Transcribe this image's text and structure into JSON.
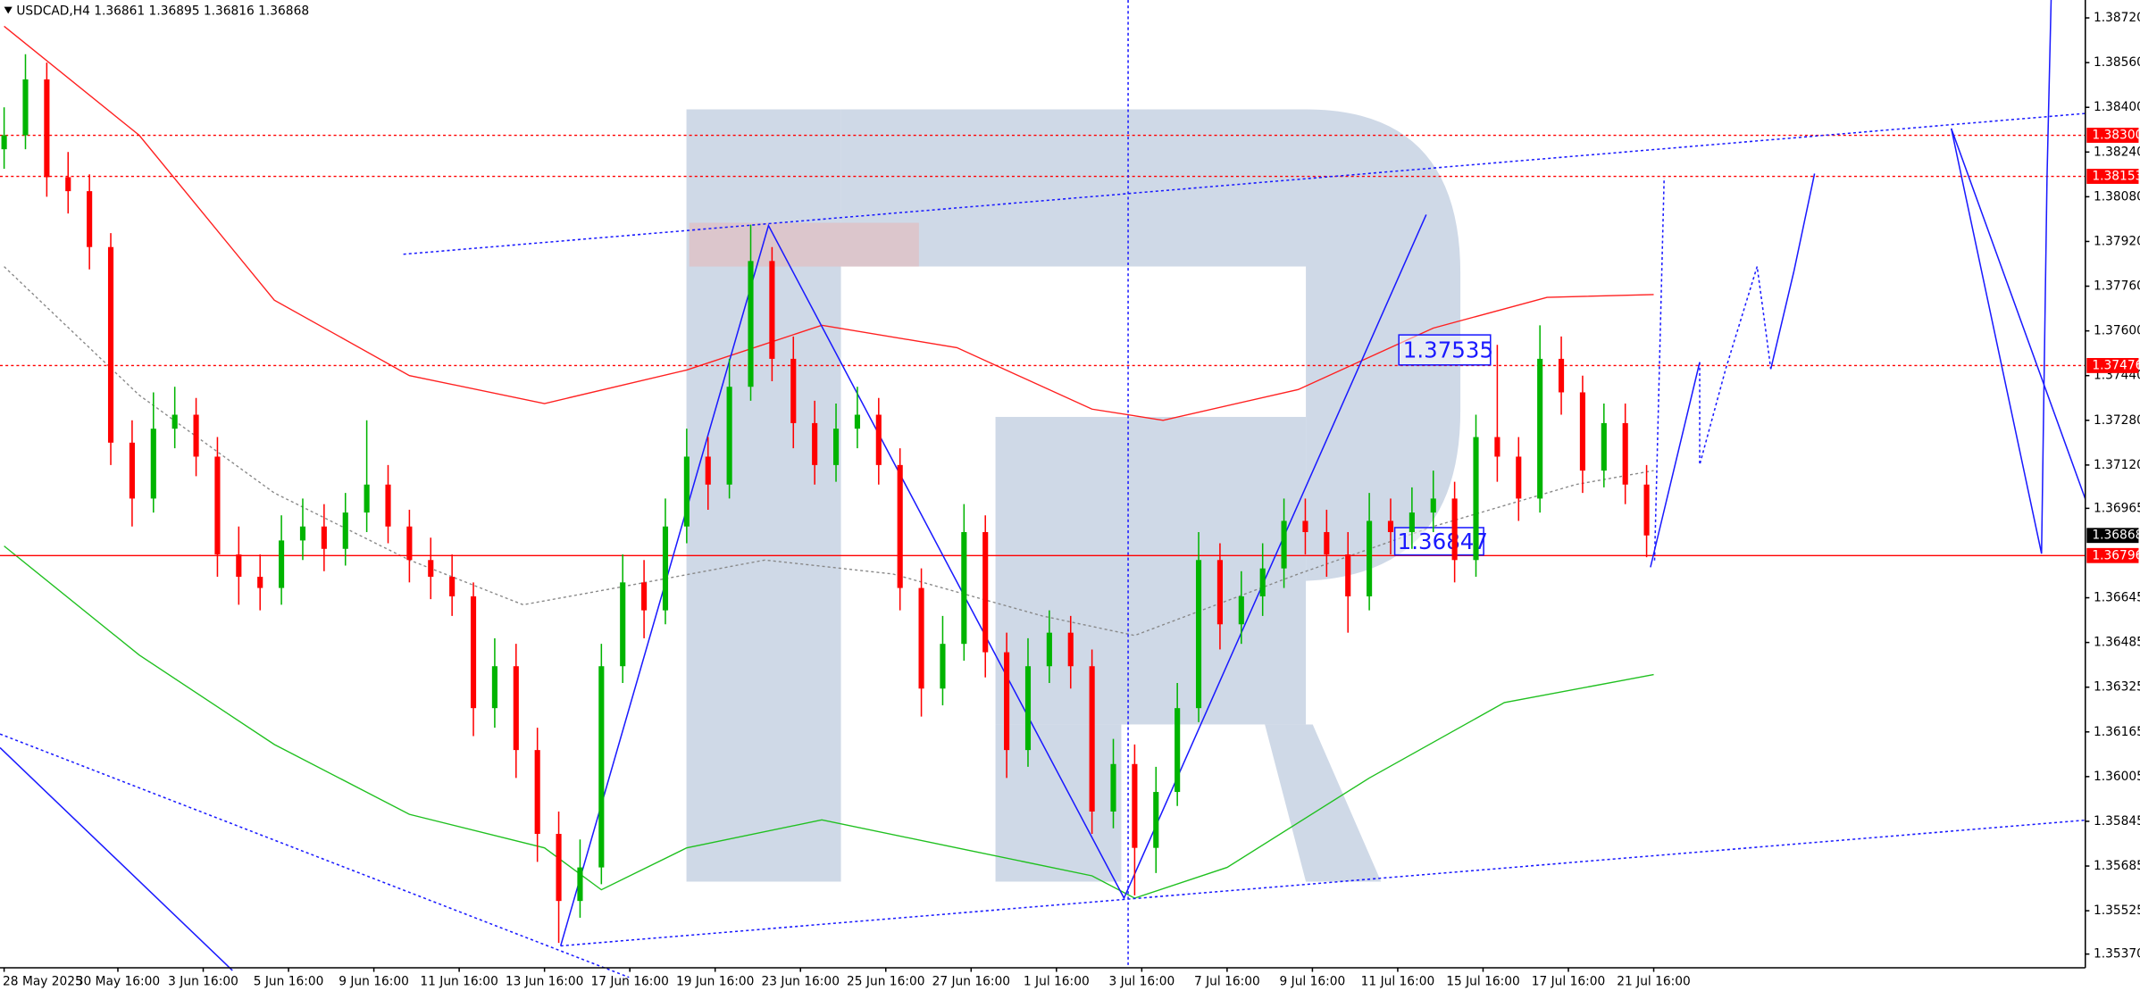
{
  "chart_data": {
    "type": "candlestick",
    "title": "USDCAD,H4  1.36861 1.36895 1.36816 1.36868",
    "xlim": [
      -0.58,
      292.7
    ],
    "ylim": [
      1.35321,
      1.38784
    ],
    "grid": false,
    "up_color": "#00b400",
    "down_color": "#ff0000",
    "xticks": [
      {
        "value": 0,
        "label": "28 May 2025"
      },
      {
        "value": 16,
        "label": "30 May 16:00"
      },
      {
        "value": 28,
        "label": "3 Jun 16:00"
      },
      {
        "value": 40,
        "label": "5 Jun 16:00"
      },
      {
        "value": 52,
        "label": "9 Jun 16:00"
      },
      {
        "value": 64,
        "label": "11 Jun 16:00"
      },
      {
        "value": 76,
        "label": "13 Jun 16:00"
      },
      {
        "value": 88,
        "label": "17 Jun 16:00"
      },
      {
        "value": 100,
        "label": "19 Jun 16:00"
      },
      {
        "value": 112,
        "label": "23 Jun 16:00"
      },
      {
        "value": 124,
        "label": "25 Jun 16:00"
      },
      {
        "value": 136,
        "label": "27 Jun 16:00"
      },
      {
        "value": 148,
        "label": "1 Jul 16:00"
      },
      {
        "value": 160,
        "label": "3 Jul 16:00"
      },
      {
        "value": 172,
        "label": "7 Jul 16:00"
      },
      {
        "value": 184,
        "label": "9 Jul 16:00"
      },
      {
        "value": 196,
        "label": "11 Jul 16:00"
      },
      {
        "value": 208,
        "label": "15 Jul 16:00"
      },
      {
        "value": 220,
        "label": "17 Jul 16:00"
      },
      {
        "value": 232,
        "label": "21 Jul 16:00"
      }
    ],
    "yticks": [
      {
        "value": 1.3872,
        "label": "1.38720"
      },
      {
        "value": 1.3856,
        "label": "1.38560"
      },
      {
        "value": 1.384,
        "label": "1.38400"
      },
      {
        "value": 1.3824,
        "label": "1.38240"
      },
      {
        "value": 1.3808,
        "label": "1.38080"
      },
      {
        "value": 1.3792,
        "label": "1.37920"
      },
      {
        "value": 1.3776,
        "label": "1.37760"
      },
      {
        "value": 1.376,
        "label": "1.37600"
      },
      {
        "value": 1.3744,
        "label": "1.37440"
      },
      {
        "value": 1.3728,
        "label": "1.37280"
      },
      {
        "value": 1.3712,
        "label": "1.37120"
      },
      1.36965,
      1.36645,
      1.36485,
      1.36325,
      1.36165,
      1.36005,
      1.35845,
      1.35685,
      1.35525,
      {
        "value": 1.3537,
        "label": "1.35370"
      }
    ],
    "x": [
      0,
      3,
      6,
      9,
      12,
      15,
      18,
      21,
      24,
      27,
      30,
      33,
      36,
      39,
      42,
      45,
      48,
      51,
      54,
      57,
      60,
      63,
      66,
      69,
      72,
      75,
      78,
      81,
      84,
      87,
      90,
      93,
      96,
      99,
      102,
      105,
      108,
      111,
      114,
      117,
      120,
      123,
      126,
      129,
      132,
      135,
      138,
      141,
      144,
      147,
      150,
      153,
      156,
      159,
      162,
      165,
      168,
      171,
      174,
      177,
      180,
      183,
      186,
      189,
      192,
      195,
      198,
      201,
      204,
      207,
      210,
      213,
      216,
      219,
      222,
      225,
      228,
      231
    ],
    "open": [
      1.3825,
      1.383,
      1.385,
      1.3815,
      1.381,
      1.379,
      1.372,
      1.37,
      1.3725,
      1.373,
      1.3715,
      1.368,
      1.3672,
      1.3668,
      1.3685,
      1.369,
      1.3682,
      1.3695,
      1.3705,
      1.369,
      1.3678,
      1.3672,
      1.3665,
      1.3625,
      1.364,
      1.361,
      1.358,
      1.3556,
      1.3568,
      1.364,
      1.367,
      1.366,
      1.369,
      1.3715,
      1.3705,
      1.374,
      1.3785,
      1.375,
      1.3727,
      1.3712,
      1.3725,
      1.373,
      1.3712,
      1.3668,
      1.3632,
      1.3648,
      1.3688,
      1.3645,
      1.361,
      1.364,
      1.3652,
      1.364,
      1.3588,
      1.3605,
      1.3575,
      1.3595,
      1.3625,
      1.3678,
      1.3655,
      1.3665,
      1.3675,
      1.3692,
      1.3688,
      1.368,
      1.3665,
      1.3692,
      1.3688,
      1.3695,
      1.37,
      1.3678,
      1.3722,
      1.3715,
      1.37,
      1.375,
      1.3738,
      1.371,
      1.3727,
      1.3705
    ],
    "high": [
      1.384,
      1.3859,
      1.3856,
      1.3824,
      1.3816,
      1.3795,
      1.3728,
      1.3738,
      1.374,
      1.3736,
      1.3722,
      1.369,
      1.368,
      1.3694,
      1.37,
      1.3698,
      1.3702,
      1.3728,
      1.3712,
      1.3696,
      1.3686,
      1.368,
      1.367,
      1.365,
      1.3648,
      1.3618,
      1.3588,
      1.3578,
      1.3648,
      1.368,
      1.3678,
      1.37,
      1.3725,
      1.3722,
      1.375,
      1.3798,
      1.379,
      1.3758,
      1.3735,
      1.3734,
      1.374,
      1.3736,
      1.3718,
      1.3675,
      1.3658,
      1.3698,
      1.3694,
      1.3652,
      1.365,
      1.366,
      1.3658,
      1.3646,
      1.3614,
      1.3612,
      1.3604,
      1.3634,
      1.3688,
      1.3684,
      1.3674,
      1.3684,
      1.37,
      1.37,
      1.3696,
      1.3688,
      1.3702,
      1.37,
      1.3704,
      1.371,
      1.3706,
      1.373,
      1.3755,
      1.3722,
      1.3762,
      1.3758,
      1.3744,
      1.3734,
      1.3734,
      1.3712
    ],
    "low": [
      1.3818,
      1.3825,
      1.3808,
      1.3802,
      1.3782,
      1.3712,
      1.369,
      1.3695,
      1.3718,
      1.3708,
      1.3672,
      1.3662,
      1.366,
      1.3662,
      1.3678,
      1.3674,
      1.3676,
      1.3688,
      1.3684,
      1.367,
      1.3664,
      1.3658,
      1.3615,
      1.3618,
      1.36,
      1.357,
      1.3541,
      1.355,
      1.3562,
      1.3634,
      1.365,
      1.3655,
      1.3684,
      1.3696,
      1.37,
      1.3735,
      1.3742,
      1.3718,
      1.3705,
      1.3706,
      1.3718,
      1.3705,
      1.366,
      1.3622,
      1.3626,
      1.3642,
      1.3636,
      1.36,
      1.3604,
      1.3634,
      1.3632,
      1.358,
      1.3582,
      1.3558,
      1.3566,
      1.359,
      1.362,
      1.3646,
      1.3648,
      1.3658,
      1.3668,
      1.368,
      1.3672,
      1.3652,
      1.366,
      1.368,
      1.3682,
      1.3688,
      1.367,
      1.3672,
      1.3706,
      1.3692,
      1.3695,
      1.373,
      1.3702,
      1.3704,
      1.3698,
      1.3679
    ],
    "close": [
      1.383,
      1.385,
      1.3815,
      1.381,
      1.379,
      1.372,
      1.37,
      1.3725,
      1.373,
      1.3715,
      1.368,
      1.3672,
      1.3668,
      1.3685,
      1.369,
      1.3682,
      1.3695,
      1.3705,
      1.369,
      1.3678,
      1.3672,
      1.3665,
      1.3625,
      1.364,
      1.361,
      1.358,
      1.3556,
      1.3568,
      1.364,
      1.367,
      1.366,
      1.369,
      1.3715,
      1.3705,
      1.374,
      1.3785,
      1.375,
      1.3727,
      1.3712,
      1.3725,
      1.373,
      1.3712,
      1.3668,
      1.3632,
      1.3648,
      1.3688,
      1.3645,
      1.361,
      1.364,
      1.3652,
      1.364,
      1.3588,
      1.3605,
      1.3575,
      1.3595,
      1.3625,
      1.3678,
      1.3655,
      1.3665,
      1.3675,
      1.3692,
      1.3688,
      1.368,
      1.3665,
      1.3692,
      1.3688,
      1.3695,
      1.37,
      1.3678,
      1.3722,
      1.3715,
      1.37,
      1.375,
      1.3738,
      1.371,
      1.3727,
      1.3705,
      1.36868
    ],
    "overlays": [
      {
        "color": "#ff2020",
        "style": "solid",
        "x": [
          0,
          19,
          38,
          57,
          76,
          96,
          115,
          134,
          153,
          163,
          182,
          201,
          217,
          232
        ],
        "values": [
          1.3869,
          1.383,
          1.3771,
          1.3744,
          1.3734,
          1.3746,
          1.3762,
          1.3754,
          1.3732,
          1.3728,
          1.3739,
          1.3761,
          1.3772,
          1.3773
        ]
      },
      {
        "color": "#20c020",
        "style": "solid",
        "x": [
          0,
          19,
          38,
          57,
          76,
          84,
          96,
          115,
          134,
          153,
          159,
          172,
          192,
          211,
          232
        ],
        "values": [
          1.3683,
          1.3644,
          1.3612,
          1.3587,
          1.3575,
          1.356,
          1.3575,
          1.3585,
          1.3575,
          1.3565,
          1.3557,
          1.3568,
          1.36,
          1.3627,
          1.3637
        ]
      },
      {
        "color": "#888888",
        "style": "dotted",
        "x": [
          0,
          19,
          38,
          57,
          73,
          86,
          107,
          125,
          146,
          159,
          182,
          201,
          221,
          232
        ],
        "values": [
          1.3783,
          1.3737,
          1.3702,
          1.3678,
          1.3662,
          1.3668,
          1.3678,
          1.3673,
          1.3658,
          1.3651,
          1.3673,
          1.369,
          1.3705,
          1.371
        ]
      }
    ],
    "price_levels": [
      {
        "value": 1.383,
        "label": "1.38300",
        "color": "#ff0000",
        "style": "dotted"
      },
      {
        "value": 1.38153,
        "color": "#ff0000",
        "style": "dotted"
      },
      {
        "value": 1.37476,
        "color": "#ff0000",
        "style": "dotted"
      },
      {
        "value": 1.36868,
        "color": "#000000",
        "style": "none"
      },
      {
        "value": 1.36796,
        "color": "#ff0000",
        "style": "solid"
      }
    ],
    "annotations": [
      "1.37535",
      "1.36847"
    ]
  }
}
